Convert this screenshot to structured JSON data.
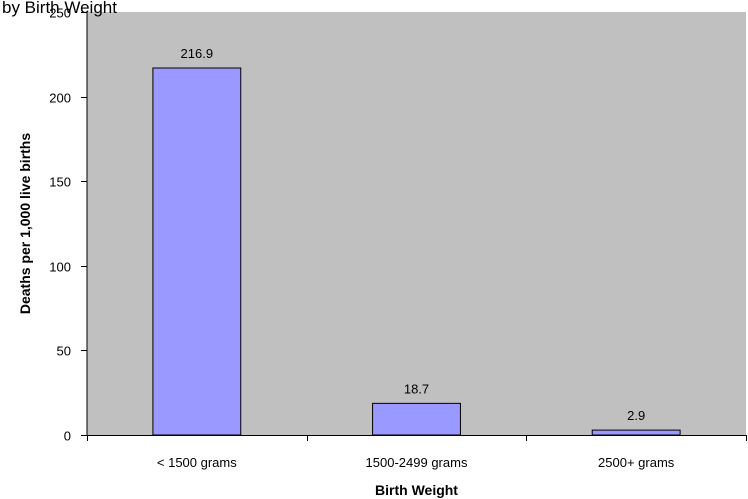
{
  "chart_data": {
    "type": "bar",
    "title": "by Birth Weight",
    "xlabel": "Birth Weight",
    "ylabel": "Deaths per 1,000 live births",
    "categories": [
      "< 1500 grams",
      "1500-2499 grams",
      "2500+ grams"
    ],
    "values": [
      216.9,
      18.7,
      2.9
    ],
    "data_labels": [
      "216.9",
      "18.7",
      "2.9"
    ],
    "ylim": [
      0,
      250
    ],
    "yticks": [
      0,
      50,
      100,
      150,
      200,
      250
    ],
    "grid": false,
    "legend": "none",
    "colors": {
      "bar_fill": "#9999ff",
      "bar_stroke": "#000000",
      "plot_background": "#c0c0c0"
    }
  }
}
